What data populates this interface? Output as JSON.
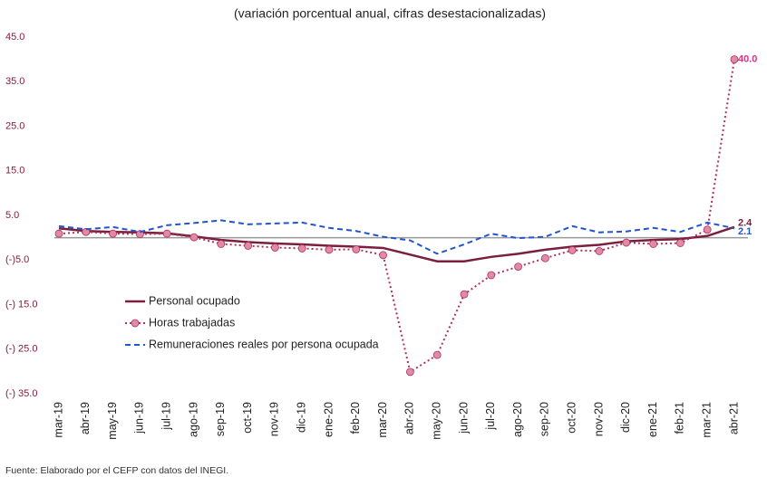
{
  "chart_data": {
    "type": "line",
    "title": "(variación porcentual anual, cifras desestacionalizadas)",
    "source": "Fuente: Elaborado por el CEFP con datos del INEGI.",
    "categories": [
      "mar-19",
      "abr-19",
      "may-19",
      "jun-19",
      "jul-19",
      "ago-19",
      "sep-19",
      "oct-19",
      "nov-19",
      "dic-19",
      "ene-20",
      "feb-20",
      "mar-20",
      "abr-20",
      "may-20",
      "jun-20",
      "jul-20",
      "ago-20",
      "sep-20",
      "oct-20",
      "nov-20",
      "dic-20",
      "ene-21",
      "feb-21",
      "mar-21",
      "abr-21"
    ],
    "ylim": [
      -35,
      45
    ],
    "yticks": [
      {
        "value": 45,
        "label": "45.0"
      },
      {
        "value": 35,
        "label": "35.0"
      },
      {
        "value": 25,
        "label": "25.0"
      },
      {
        "value": 15,
        "label": "15.0"
      },
      {
        "value": 5,
        "label": "5.0"
      },
      {
        "value": -5,
        "label": "(-)5.0"
      },
      {
        "value": -15,
        "label": "(-) 15.0"
      },
      {
        "value": -25,
        "label": "(-) 25.0"
      },
      {
        "value": -35,
        "label": "(-) 35.0"
      }
    ],
    "grid": false,
    "legend": "lower left",
    "series": [
      {
        "name": "Personal ocupado",
        "color": "#7a1f3d",
        "line_style": "solid",
        "marker": false,
        "label_color": "#7a1f3d",
        "values": [
          2.1,
          1.5,
          1.3,
          1.2,
          1.0,
          0.3,
          -0.5,
          -1.0,
          -1.3,
          -1.5,
          -1.8,
          -2.0,
          -2.3,
          -3.8,
          -5.3,
          -5.3,
          -4.3,
          -3.6,
          -2.7,
          -2.0,
          -1.6,
          -0.8,
          -0.5,
          -0.3,
          0.4,
          2.4
        ],
        "value_labels": [
          null,
          null,
          null,
          null,
          null,
          null,
          null,
          null,
          null,
          null,
          null,
          null,
          null,
          null,
          null,
          null,
          null,
          null,
          null,
          null,
          null,
          null,
          null,
          null,
          null,
          "2.4"
        ]
      },
      {
        "name": "Horas trabajadas",
        "color": "#b03060",
        "line_style": "dotted",
        "marker": true,
        "marker_color": "#e08aa6",
        "label_color": "#e0308a",
        "values": [
          0.9,
          1.3,
          0.9,
          0.8,
          0.9,
          0.1,
          -1.4,
          -1.8,
          -2.2,
          -2.4,
          -2.7,
          -2.6,
          -3.9,
          -30.1,
          -26.3,
          -12.7,
          -8.4,
          -6.5,
          -4.6,
          -2.8,
          -3.0,
          -1.1,
          -1.4,
          -1.2,
          1.8,
          40.0
        ],
        "value_labels": [
          null,
          null,
          null,
          null,
          null,
          null,
          null,
          null,
          null,
          null,
          null,
          null,
          null,
          null,
          null,
          null,
          null,
          null,
          null,
          null,
          null,
          null,
          null,
          null,
          null,
          "40.0"
        ]
      },
      {
        "name": "Remuneraciones reales por persona ocupada",
        "color": "#2255cc",
        "line_style": "dashed",
        "marker": false,
        "label_color": "#2255cc",
        "values": [
          2.6,
          1.9,
          2.4,
          1.3,
          2.8,
          3.3,
          3.9,
          3.0,
          3.2,
          3.4,
          2.2,
          1.5,
          0.2,
          -0.6,
          -3.6,
          -1.5,
          0.9,
          -0.1,
          0.2,
          2.6,
          1.2,
          1.4,
          2.2,
          1.3,
          3.4,
          2.1
        ],
        "value_labels": [
          null,
          null,
          null,
          null,
          null,
          null,
          null,
          null,
          null,
          null,
          null,
          null,
          null,
          null,
          null,
          null,
          null,
          null,
          null,
          null,
          null,
          null,
          null,
          null,
          null,
          "2.1"
        ]
      }
    ]
  }
}
